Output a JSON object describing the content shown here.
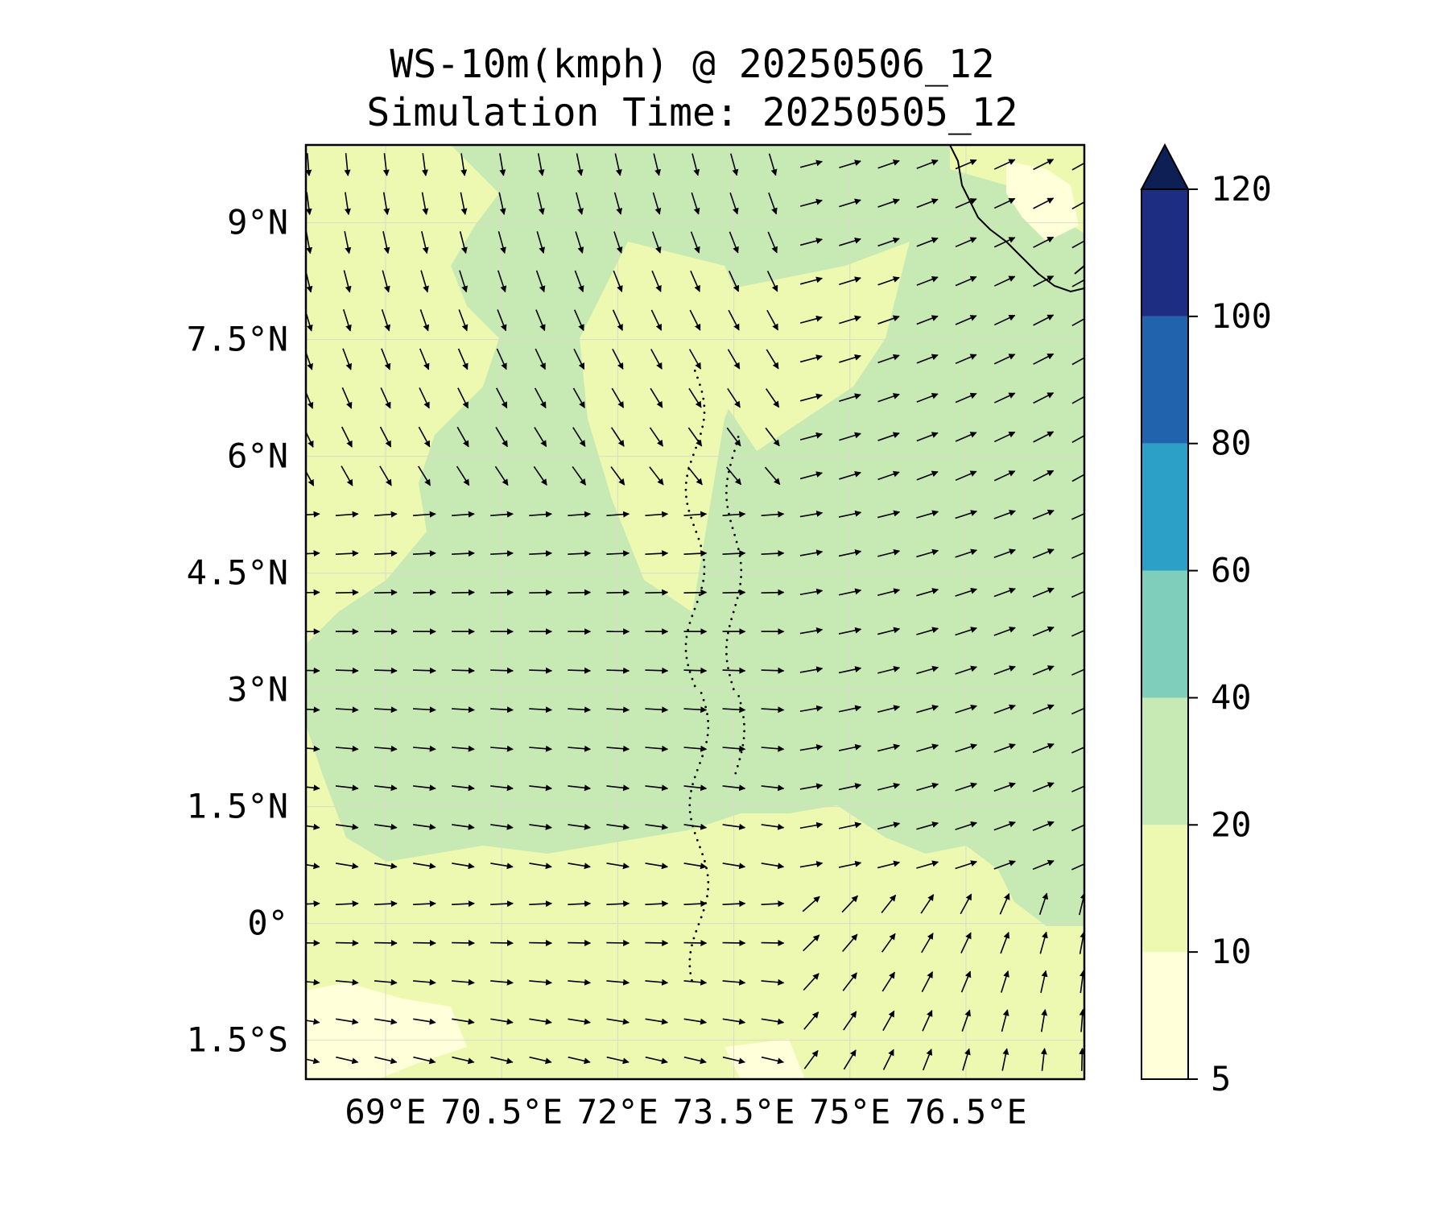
{
  "title": "WS-10m(kmph) @ 20250506_12",
  "subtitle": "Simulation Time: 20250505_12",
  "map": {
    "lon_range": [
      67.97,
      78.03
    ],
    "lat_range": [
      -2.0,
      10.0
    ],
    "lon_ticks": [
      {
        "value": 69.0,
        "label": "69°E"
      },
      {
        "value": 70.5,
        "label": "70.5°E"
      },
      {
        "value": 72.0,
        "label": "72°E"
      },
      {
        "value": 73.5,
        "label": "73.5°E"
      },
      {
        "value": 75.0,
        "label": "75°E"
      },
      {
        "value": 76.5,
        "label": "76.5°E"
      }
    ],
    "lat_ticks": [
      {
        "value": 9.0,
        "label": "9°N"
      },
      {
        "value": 7.5,
        "label": "7.5°N"
      },
      {
        "value": 6.0,
        "label": "6°N"
      },
      {
        "value": 4.5,
        "label": "4.5°N"
      },
      {
        "value": 3.0,
        "label": "3°N"
      },
      {
        "value": 1.5,
        "label": "1.5°N"
      },
      {
        "value": 0.0,
        "label": "0°"
      },
      {
        "value": -1.5,
        "label": "1.5°S"
      }
    ],
    "field_colors": [
      "#ffffd9",
      "#edf8b1",
      "#c7e9b4"
    ],
    "field_description": "wind speed mostly 10-20 and 20-40 kmph"
  },
  "colorbar": {
    "levels": [
      5,
      10,
      20,
      40,
      60,
      80,
      100,
      120
    ],
    "labels": [
      "5",
      "10",
      "20",
      "40",
      "60",
      "80",
      "100",
      "120"
    ],
    "colors": [
      "#ffffd9",
      "#edf8b1",
      "#c7e9b4",
      "#7fcdbb",
      "#2ca0c6",
      "#2263ad",
      "#1d2d82"
    ],
    "extend_color": "#0e1f56",
    "extend": "max"
  }
}
